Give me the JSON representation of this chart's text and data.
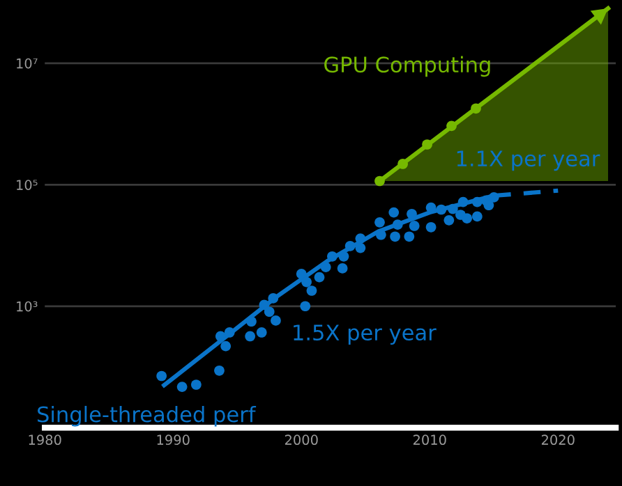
{
  "chart_data": {
    "type": "scatter",
    "xlim": [
      1980,
      2024.5
    ],
    "ylim": [
      10,
      110000000
    ],
    "log": "y",
    "xticks": [
      1980,
      1990,
      2000,
      2010,
      2020
    ],
    "yticks": [
      {
        "value": 1000,
        "label": "10³"
      },
      {
        "value": 100000,
        "label": "10⁵"
      },
      {
        "value": 10000000,
        "label": "10⁷"
      }
    ],
    "grid": "y",
    "series": [
      {
        "color": "#0a74c9",
        "marker": "circle",
        "x": [
          1989.1,
          1990.7,
          1991.8,
          1993.6,
          1993.7,
          1994.1,
          1994.4,
          1996.0,
          1996.1,
          1996.9,
          1997.1,
          1997.5,
          1997.8,
          1998.0,
          2000.0,
          2000.3,
          2000.4,
          2000.8,
          2001.4,
          2001.9,
          2002.4,
          2003.2,
          2003.3,
          2003.8,
          2004.6,
          2004.6,
          2006.1,
          2006.2,
          2007.2,
          2007.5,
          2007.3,
          2008.4,
          2008.6,
          2008.8,
          2010.1,
          2010.1,
          2010.9,
          2011.5,
          2011.8,
          2012.6,
          2012.4,
          2012.9,
          2013.7,
          2013.7,
          2014.4,
          2014.6,
          2015.0
        ],
        "values": [
          71,
          47,
          51,
          87,
          320,
          220,
          370,
          320,
          560,
          370,
          1050,
          810,
          1350,
          580,
          3400,
          1000,
          2500,
          1800,
          3000,
          4400,
          6600,
          4200,
          6600,
          9800,
          13000,
          9100,
          24000,
          15000,
          35000,
          22000,
          14000,
          14000,
          33000,
          21000,
          42000,
          20000,
          39000,
          26000,
          40000,
          52000,
          32000,
          28000,
          30000,
          52000,
          55000,
          46000,
          62000
        ]
      },
      {
        "type": "line",
        "name": "Single-threaded perf",
        "color": "#0a74c9",
        "line_style": "solid",
        "x": [
          1989.3,
          1994,
          1998,
          2002,
          2006,
          2010,
          2015
        ],
        "values": [
          50,
          300,
          1400,
          5500,
          17000,
          35000,
          66000
        ]
      },
      {
        "type": "line",
        "color": "#0a74c9",
        "line_style": "dashed",
        "x": [
          2015,
          2020
        ],
        "values": [
          66000,
          80000
        ]
      },
      {
        "type": "line",
        "name": "GPU Computing",
        "color": "#76b900",
        "line_style": "solid",
        "x": [
          2006.1,
          2023.9
        ],
        "values": [
          115000,
          80000000
        ]
      },
      {
        "type": "scatter",
        "color": "#76b900",
        "marker": "circle",
        "x": [
          2006.1,
          2007.9,
          2009.8,
          2011.7,
          2013.6
        ],
        "values": [
          115000,
          220000,
          460000,
          930000,
          1800000
        ]
      }
    ],
    "annotations": [
      "1.1X per year",
      "1.5X per year"
    ]
  }
}
